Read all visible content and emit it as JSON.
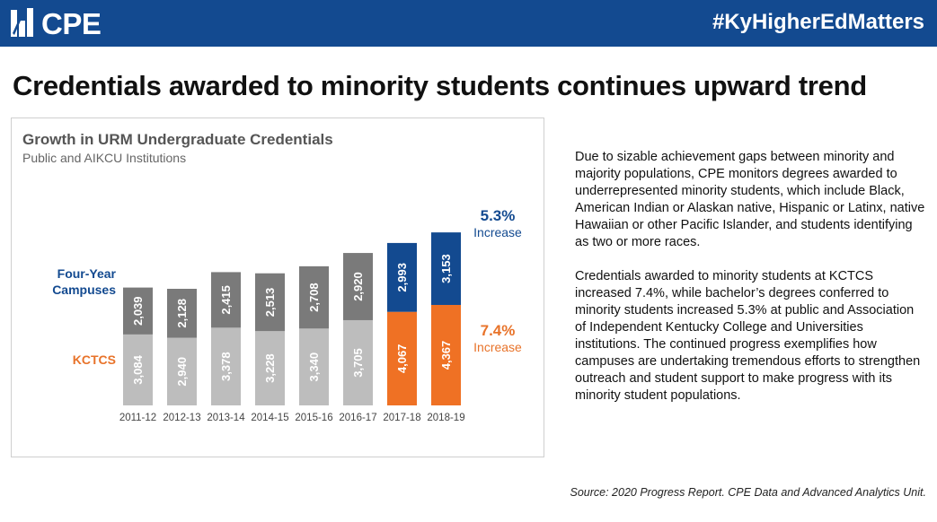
{
  "header": {
    "logo_text": "CPE",
    "hashtag": "#KyHigherEdMatters",
    "background_color": "#134a90"
  },
  "headline": "Credentials awarded to minority students continues upward trend",
  "chart_data": {
    "type": "bar",
    "stacked": true,
    "title": "Growth in URM Undergraduate Credentials",
    "subtitle": "Public and AIKCU Institutions",
    "categories": [
      "2011-12",
      "2012-13",
      "2013-14",
      "2014-15",
      "2015-16",
      "2016-17",
      "2017-18",
      "2018-19"
    ],
    "series": [
      {
        "name": "KCTCS",
        "values": [
          3084,
          2940,
          3378,
          3228,
          3340,
          3705,
          4067,
          4367
        ],
        "labels": [
          "3,084",
          "2,940",
          "3,378",
          "3,228",
          "3,340",
          "3,705",
          "4,067",
          "4,367"
        ]
      },
      {
        "name": "Four-Year Campuses",
        "values": [
          2039,
          2128,
          2415,
          2513,
          2708,
          2920,
          2993,
          3153
        ],
        "labels": [
          "2,039",
          "2,128",
          "2,415",
          "2,513",
          "2,708",
          "2,920",
          "2,993",
          "3,153"
        ]
      }
    ],
    "colors": {
      "kctcs_base": "#bdbdbd",
      "four_year_base": "#7a7a7a",
      "kctcs_highlight": "#ef7124",
      "four_year_highlight": "#134a90"
    },
    "highlight_categories": [
      "2017-18",
      "2018-19"
    ],
    "side_labels": {
      "four_year": "Four-Year Campuses",
      "kctcs": "KCTCS"
    },
    "annotations": [
      {
        "series": "Four-Year Campuses",
        "value": "5.3%",
        "text": "Increase"
      },
      {
        "series": "KCTCS",
        "value": "7.4%",
        "text": "Increase"
      }
    ],
    "grid": false,
    "legend": "none"
  },
  "body": {
    "paragraph1": "Due to sizable achievement gaps between minority and majority populations, CPE monitors degrees awarded to underrepresented minority students, which include Black, American Indian or Alaskan native, Hispanic or Latinx, native Hawaiian or other Pacific Islander, and students identifying as two or more races.",
    "paragraph2": "Credentials awarded to minority students at KCTCS increased 7.4%, while bachelor’s degrees conferred to minority students increased 5.3% at public and Association of Independent Kentucky College and Universities institutions. The continued progress exemplifies how campuses are undertaking tremendous efforts to strengthen outreach and student support to make progress with its minority student populations."
  },
  "source": "Source: 2020 Progress Report. CPE Data and Advanced Analytics Unit."
}
